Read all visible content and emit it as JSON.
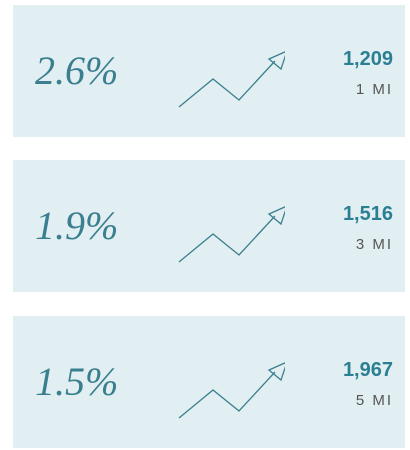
{
  "cards": [
    {
      "percent": "2.6%",
      "count": "1,209",
      "radius": "1 MI"
    },
    {
      "percent": "1.9%",
      "count": "1,516",
      "radius": "3 MI"
    },
    {
      "percent": "1.5%",
      "count": "1,967",
      "radius": "5 MI"
    }
  ]
}
